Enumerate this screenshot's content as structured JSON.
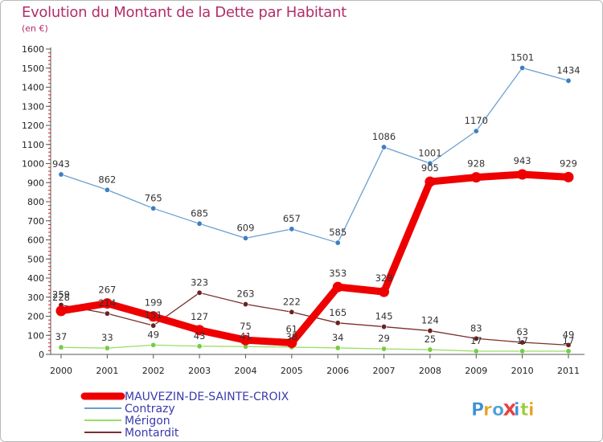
{
  "title": "Evolution du Montant de la Dette par Habitant",
  "unit": "(en €)",
  "logo_text": "Proxiti",
  "chart_data": {
    "type": "line",
    "x": [
      "2000",
      "2001",
      "2002",
      "2003",
      "2004",
      "2005",
      "2006",
      "2007",
      "2008",
      "2009",
      "2010",
      "2011"
    ],
    "ylim": [
      0,
      1600
    ],
    "yticks": [
      0,
      100,
      200,
      300,
      400,
      500,
      600,
      700,
      800,
      900,
      1000,
      1100,
      1200,
      1300,
      1400,
      1500,
      1600
    ],
    "grid": false,
    "legend_position": "bottom-left",
    "series": [
      {
        "name": "Contrazy",
        "color": "#6a9fd0",
        "marker": "#3d7fc0",
        "values": [
          943,
          862,
          765,
          685,
          609,
          657,
          585,
          1086,
          1001,
          1170,
          1501,
          1434
        ]
      },
      {
        "name": "Mérigon",
        "color": "#99dd66",
        "marker": "#77cc44",
        "values": [
          37,
          33,
          49,
          43,
          41,
          38,
          34,
          29,
          25,
          17,
          17,
          17
        ]
      },
      {
        "name": "Montardit",
        "color": "#7a2e2e",
        "marker": "#6a2222",
        "values": [
          259,
          214,
          151,
          323,
          263,
          222,
          165,
          145,
          124,
          83,
          63,
          49
        ]
      },
      {
        "name": "MAUVEZIN-DE-SAINTE-CROIX",
        "color": "#ee0000",
        "marker": "#ee0000",
        "values": [
          228,
          267,
          199,
          127,
          75,
          61,
          353,
          328,
          905,
          928,
          943,
          929
        ]
      }
    ],
    "data_labels": [
      {
        "series": "Contrazy",
        "labels": [
          "943",
          "862",
          "765",
          "685",
          "609",
          "657",
          "585",
          "1086",
          "1001",
          "1170",
          "1501",
          "1434"
        ]
      },
      {
        "series": "Mérigon",
        "labels": [
          "37",
          "33",
          "49",
          "43",
          "41",
          "38",
          "34",
          "29",
          "25",
          "17",
          "17",
          "17"
        ]
      },
      {
        "series": "Montardit",
        "labels": [
          "259",
          "214",
          "151",
          "323",
          "263",
          "222",
          "165",
          "145",
          "124",
          "83",
          "63",
          "49"
        ]
      },
      {
        "series": "MAUVEZIN-DE-SAINTE-CROIX",
        "labels": [
          "228",
          "267",
          "199",
          "127",
          "75",
          "61",
          "353",
          "328",
          "905",
          "928",
          "943",
          "929"
        ]
      }
    ],
    "legend": [
      {
        "name": "MAUVEZIN-DE-SAINTE-CROIX",
        "color": "#ee0000"
      },
      {
        "name": "Contrazy",
        "color": "#6a9fd0"
      },
      {
        "name": "Mérigon",
        "color": "#99dd66"
      },
      {
        "name": "Montardit",
        "color": "#7a2e2e"
      }
    ]
  }
}
